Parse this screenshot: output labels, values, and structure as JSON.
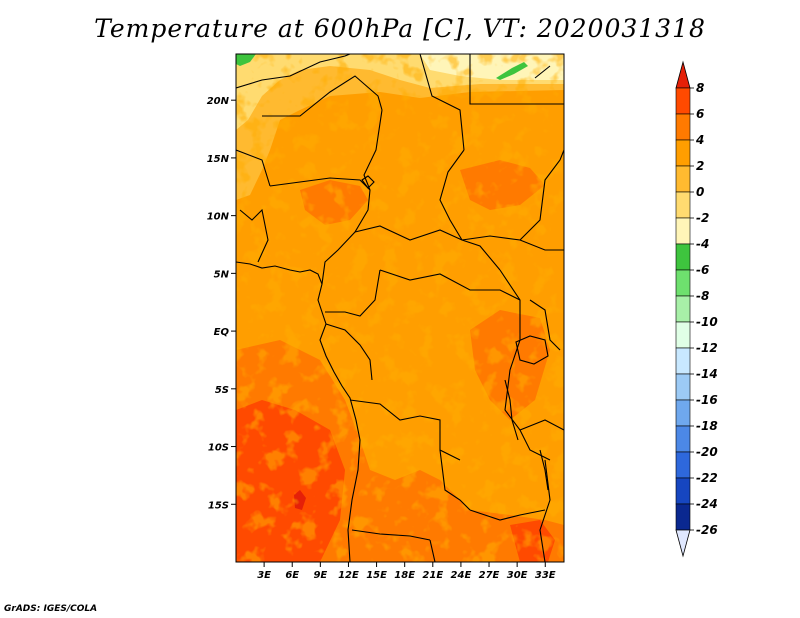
{
  "title": "Temperature at 600hPa [C], VT: 2020031318",
  "credit": "GrADS: IGES/COLA",
  "map": {
    "lon_range": [
      0,
      35
    ],
    "lat_range": [
      -20,
      24
    ],
    "lon_ticks": [
      {
        "value": 3,
        "label": "3E"
      },
      {
        "value": 6,
        "label": "6E"
      },
      {
        "value": 9,
        "label": "9E"
      },
      {
        "value": 12,
        "label": "12E"
      },
      {
        "value": 15,
        "label": "15E"
      },
      {
        "value": 18,
        "label": "18E"
      },
      {
        "value": 21,
        "label": "21E"
      },
      {
        "value": 24,
        "label": "24E"
      },
      {
        "value": 27,
        "label": "27E"
      },
      {
        "value": 30,
        "label": "30E"
      },
      {
        "value": 33,
        "label": "33E"
      }
    ],
    "lat_ticks": [
      {
        "value": 20,
        "label": "20N"
      },
      {
        "value": 15,
        "label": "15N"
      },
      {
        "value": 10,
        "label": "10N"
      },
      {
        "value": 5,
        "label": "5N"
      },
      {
        "value": 0,
        "label": "EQ"
      },
      {
        "value": -5,
        "label": "5S"
      },
      {
        "value": -10,
        "label": "10S"
      },
      {
        "value": -15,
        "label": "15S"
      }
    ]
  },
  "colorbar": {
    "levels": [
      "8",
      "6",
      "4",
      "2",
      "0",
      "-2",
      "-4",
      "-6",
      "-8",
      "-10",
      "-12",
      "-14",
      "-16",
      "-18",
      "-20",
      "-22",
      "-24",
      "-26"
    ],
    "colors": [
      "#e52008",
      "#ff4a00",
      "#ff7a00",
      "#ff9e00",
      "#ffba30",
      "#ffdb70",
      "#fff5b8",
      "#3ec43e",
      "#6ee06e",
      "#a8f0a8",
      "#e0ffe6",
      "#c8e8ff",
      "#9ccaf5",
      "#6fa8ee",
      "#4c88e6",
      "#2e68dc",
      "#1646c0",
      "#0a2890",
      "#050a60"
    ]
  }
}
